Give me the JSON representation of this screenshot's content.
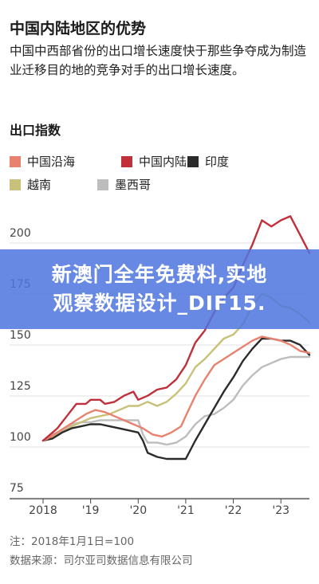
{
  "header": {
    "title": "中国内陆地区的优势",
    "subtitle": "中国中西部省份的出口增长速度快于那些争夺成为制造业迁移目的地的竞争对手的出口增长速度。"
  },
  "banner": {
    "line1": "新澳门全年免费料,实地",
    "line2": "观察数据设计_DIF15."
  },
  "footer": {
    "note": "注：2018年1月1日=100",
    "source": "数据来源：司尔亚司数据信息有限公司"
  },
  "chart_data": {
    "type": "line",
    "title": "出口指数",
    "xlabel": "",
    "ylabel": "",
    "ylim": [
      75,
      215
    ],
    "xlim": [
      2018,
      2023.6
    ],
    "x_ticks": [
      {
        "value": 2018,
        "label": "2018"
      },
      {
        "value": 2019,
        "label": "'19"
      },
      {
        "value": 2020,
        "label": "'20"
      },
      {
        "value": 2021,
        "label": "'21"
      },
      {
        "value": 2022,
        "label": "'22"
      },
      {
        "value": 2023,
        "label": "'23"
      }
    ],
    "y_ticks": [
      75,
      100,
      125,
      150,
      175,
      200
    ],
    "grid": true,
    "legend_position": "top-left",
    "series": [
      {
        "name": "中国沿海",
        "color": "#e8826f",
        "points": [
          [
            2018.0,
            100
          ],
          [
            2018.1,
            101
          ],
          [
            2018.3,
            104
          ],
          [
            2018.5,
            107
          ],
          [
            2018.7,
            110
          ],
          [
            2018.9,
            113
          ],
          [
            2019.1,
            115
          ],
          [
            2019.3,
            114
          ],
          [
            2019.5,
            112
          ],
          [
            2019.7,
            110
          ],
          [
            2019.9,
            108
          ],
          [
            2020.1,
            106
          ],
          [
            2020.3,
            103
          ],
          [
            2020.5,
            102
          ],
          [
            2020.7,
            104
          ],
          [
            2020.9,
            107
          ],
          [
            2021.0,
            112
          ],
          [
            2021.2,
            122
          ],
          [
            2021.4,
            130
          ],
          [
            2021.6,
            137
          ],
          [
            2021.8,
            140
          ],
          [
            2022.0,
            143
          ],
          [
            2022.2,
            146
          ],
          [
            2022.4,
            149
          ],
          [
            2022.6,
            151
          ],
          [
            2022.8,
            150
          ],
          [
            2023.0,
            149
          ],
          [
            2023.2,
            147
          ],
          [
            2023.4,
            144
          ],
          [
            2023.6,
            143
          ]
        ]
      },
      {
        "name": "中国内陆",
        "color": "#c0303a",
        "points": [
          [
            2018.0,
            100
          ],
          [
            2018.1,
            102
          ],
          [
            2018.3,
            106
          ],
          [
            2018.5,
            112
          ],
          [
            2018.7,
            118
          ],
          [
            2018.9,
            118
          ],
          [
            2019.0,
            120
          ],
          [
            2019.2,
            120
          ],
          [
            2019.3,
            118
          ],
          [
            2019.5,
            119
          ],
          [
            2019.7,
            122
          ],
          [
            2019.9,
            124
          ],
          [
            2020.0,
            120
          ],
          [
            2020.2,
            122
          ],
          [
            2020.4,
            125
          ],
          [
            2020.6,
            126
          ],
          [
            2020.8,
            130
          ],
          [
            2021.0,
            137
          ],
          [
            2021.2,
            148
          ],
          [
            2021.4,
            154
          ],
          [
            2021.6,
            163
          ],
          [
            2021.8,
            170
          ],
          [
            2022.0,
            175
          ],
          [
            2022.2,
            186
          ],
          [
            2022.4,
            196
          ],
          [
            2022.6,
            208
          ],
          [
            2022.8,
            205
          ],
          [
            2023.0,
            208
          ],
          [
            2023.2,
            210
          ],
          [
            2023.4,
            201
          ],
          [
            2023.6,
            192
          ]
        ]
      },
      {
        "name": "印度",
        "color": "#2b2b2b",
        "points": [
          [
            2018.0,
            100
          ],
          [
            2018.2,
            101
          ],
          [
            2018.4,
            104
          ],
          [
            2018.6,
            106
          ],
          [
            2018.8,
            107
          ],
          [
            2019.0,
            108
          ],
          [
            2019.2,
            108
          ],
          [
            2019.4,
            107
          ],
          [
            2019.6,
            106
          ],
          [
            2019.8,
            105
          ],
          [
            2020.0,
            104
          ],
          [
            2020.1,
            100
          ],
          [
            2020.2,
            94
          ],
          [
            2020.4,
            92
          ],
          [
            2020.6,
            91
          ],
          [
            2020.8,
            91
          ],
          [
            2021.0,
            91
          ],
          [
            2021.2,
            100
          ],
          [
            2021.4,
            108
          ],
          [
            2021.6,
            116
          ],
          [
            2021.8,
            124
          ],
          [
            2022.0,
            131
          ],
          [
            2022.2,
            139
          ],
          [
            2022.4,
            145
          ],
          [
            2022.6,
            150
          ],
          [
            2022.8,
            150
          ],
          [
            2023.0,
            149
          ],
          [
            2023.2,
            149
          ],
          [
            2023.4,
            147
          ],
          [
            2023.6,
            142
          ]
        ]
      },
      {
        "name": "越南",
        "color": "#c9c079",
        "points": [
          [
            2018.0,
            100
          ],
          [
            2018.2,
            102
          ],
          [
            2018.4,
            104
          ],
          [
            2018.6,
            107
          ],
          [
            2018.8,
            109
          ],
          [
            2019.0,
            111
          ],
          [
            2019.2,
            112
          ],
          [
            2019.4,
            113
          ],
          [
            2019.6,
            115
          ],
          [
            2019.8,
            117
          ],
          [
            2020.0,
            117
          ],
          [
            2020.2,
            119
          ],
          [
            2020.4,
            117
          ],
          [
            2020.6,
            119
          ],
          [
            2020.8,
            123
          ],
          [
            2021.0,
            128
          ],
          [
            2021.2,
            136
          ],
          [
            2021.4,
            140
          ],
          [
            2021.6,
            145
          ],
          [
            2021.8,
            150
          ],
          [
            2022.0,
            152
          ],
          [
            2022.2,
            157
          ],
          [
            2022.4,
            166
          ],
          [
            2022.6,
            172
          ],
          [
            2022.8,
            170
          ],
          [
            2023.0,
            166
          ],
          [
            2023.2,
            165
          ],
          [
            2023.4,
            162
          ],
          [
            2023.6,
            158
          ]
        ]
      },
      {
        "name": "墨西哥",
        "color": "#bdbdbd",
        "points": [
          [
            2018.0,
            100
          ],
          [
            2018.2,
            103
          ],
          [
            2018.4,
            105
          ],
          [
            2018.6,
            108
          ],
          [
            2018.8,
            109
          ],
          [
            2019.0,
            109
          ],
          [
            2019.2,
            110
          ],
          [
            2019.4,
            110
          ],
          [
            2019.6,
            110
          ],
          [
            2019.8,
            110
          ],
          [
            2020.0,
            110
          ],
          [
            2020.1,
            103
          ],
          [
            2020.2,
            99
          ],
          [
            2020.4,
            99
          ],
          [
            2020.6,
            98
          ],
          [
            2020.8,
            99
          ],
          [
            2021.0,
            102
          ],
          [
            2021.2,
            108
          ],
          [
            2021.4,
            112
          ],
          [
            2021.6,
            113
          ],
          [
            2021.8,
            116
          ],
          [
            2022.0,
            120
          ],
          [
            2022.2,
            127
          ],
          [
            2022.4,
            132
          ],
          [
            2022.6,
            136
          ],
          [
            2022.8,
            138
          ],
          [
            2023.0,
            140
          ],
          [
            2023.2,
            141
          ],
          [
            2023.4,
            141
          ],
          [
            2023.6,
            141
          ]
        ]
      }
    ]
  }
}
